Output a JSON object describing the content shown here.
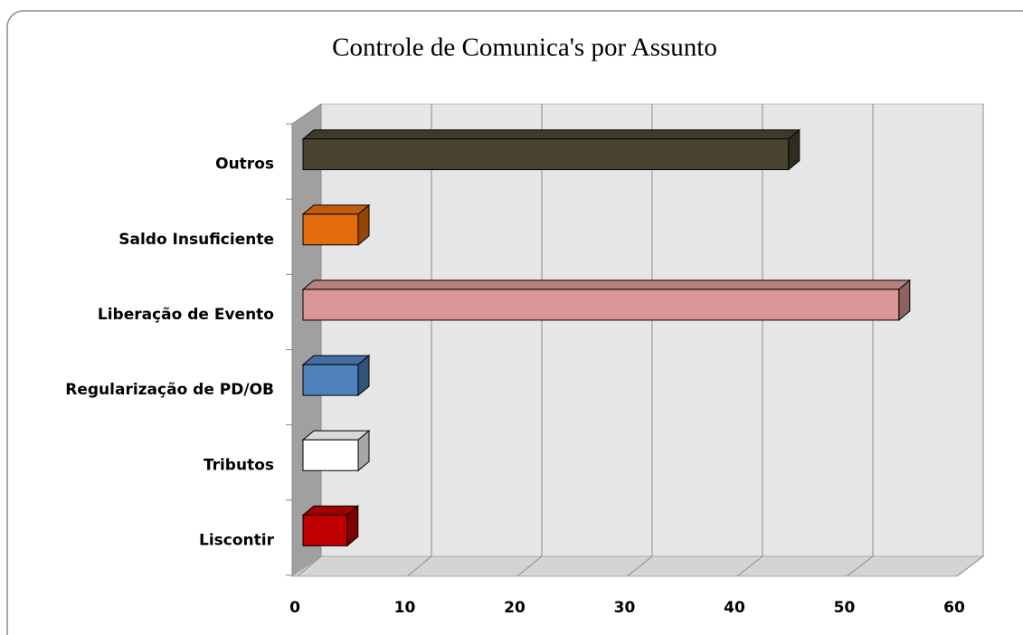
{
  "chart_data": {
    "type": "bar3d_horizontal",
    "title": "Controle de Comunica's por Assunto",
    "categories": [
      "Outros",
      "Saldo Insuficiente",
      "Liberação de Evento",
      "Regularização de PD/OB",
      "Tributos",
      "Liscontir"
    ],
    "values": [
      44,
      5,
      54,
      5,
      5,
      4
    ],
    "colors": [
      "#4a4330",
      "#e46c0a",
      "#d99694",
      "#4f81bd",
      "#ffffff",
      "#c00000"
    ],
    "xlim": [
      0,
      60
    ],
    "xticks": [
      0,
      10,
      20,
      30,
      40,
      50,
      60
    ],
    "grid": true
  }
}
